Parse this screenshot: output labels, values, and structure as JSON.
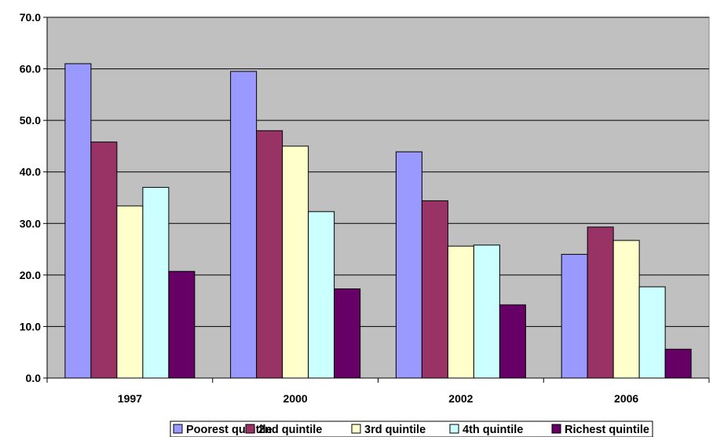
{
  "chart_data": {
    "type": "bar",
    "categories": [
      "1997",
      "2000",
      "2002",
      "2006"
    ],
    "series": [
      {
        "name": "Poorest quintile",
        "color": "#9999FF",
        "values": [
          61.0,
          59.5,
          43.9,
          24.0
        ]
      },
      {
        "name": "2nd quintile",
        "color": "#993366",
        "values": [
          45.8,
          48.0,
          34.4,
          29.3
        ]
      },
      {
        "name": "3rd quintile",
        "color": "#FFFFCC",
        "values": [
          33.4,
          45.0,
          25.6,
          26.7
        ]
      },
      {
        "name": "4th quintile",
        "color": "#CCFFFF",
        "values": [
          37.0,
          32.3,
          25.8,
          17.7
        ]
      },
      {
        "name": "Richest quintile",
        "color": "#660066",
        "values": [
          20.7,
          17.3,
          14.2,
          5.6
        ]
      }
    ],
    "ylim": [
      0,
      70
    ],
    "yticks": [
      "0.0",
      "10.0",
      "20.0",
      "30.0",
      "40.0",
      "50.0",
      "60.0",
      "70.0"
    ],
    "grid": true,
    "legend_position": "bottom",
    "plot_background": "#C0C0C0"
  }
}
